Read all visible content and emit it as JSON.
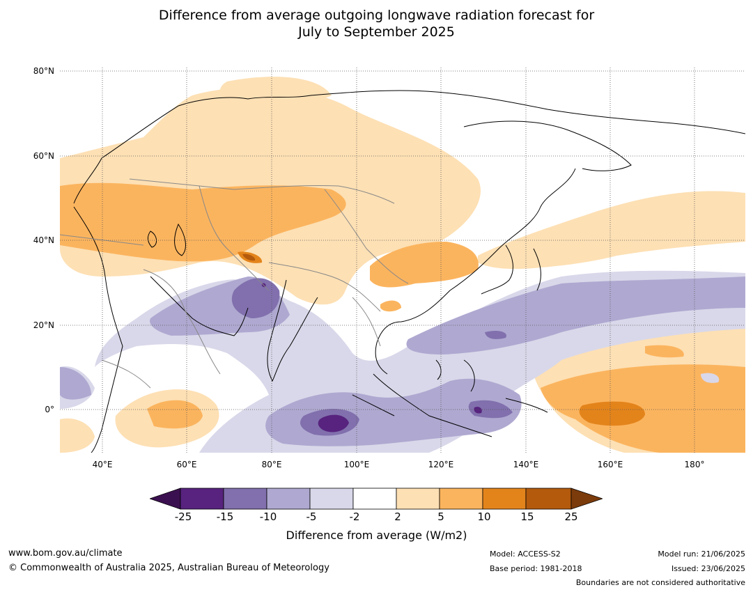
{
  "title": {
    "line1": "Difference from average outgoing longwave radiation forecast for",
    "line2": "July to September 2025"
  },
  "axes": {
    "lat_labels": [
      "80°N",
      "60°N",
      "40°N",
      "20°N",
      "0°"
    ],
    "lon_labels": [
      "40°E",
      "60°E",
      "80°E",
      "100°E",
      "120°E",
      "140°E",
      "160°E",
      "180°"
    ]
  },
  "colorbar": {
    "ticks": [
      "-25",
      "-15",
      "-10",
      "-5",
      "-2",
      "2",
      "5",
      "10",
      "15",
      "25"
    ],
    "label": "Difference from average (W/m2)",
    "colors": {
      "under": "#3b1050",
      "c1": "#57237e",
      "c2": "#8170ad",
      "c3": "#afa9d1",
      "c4": "#d9d8ea",
      "c5": "#ffffff",
      "c6": "#fde0b4",
      "c7": "#fbb45e",
      "c8": "#e3841b",
      "c9": "#b35a0d",
      "over": "#7b3b0b"
    }
  },
  "footer": {
    "website": "www.bom.gov.au/climate",
    "copyright": "© Commonwealth of Australia 2025, Australian Bureau of Meteorology",
    "model": "Model: ACCESS-S2",
    "base_period": "Base period: 1981-2018",
    "model_run": "Model run: 21/06/2025",
    "issued": "Issued: 23/06/2025",
    "disclaimer": "Boundaries are not considered authoritative"
  }
}
